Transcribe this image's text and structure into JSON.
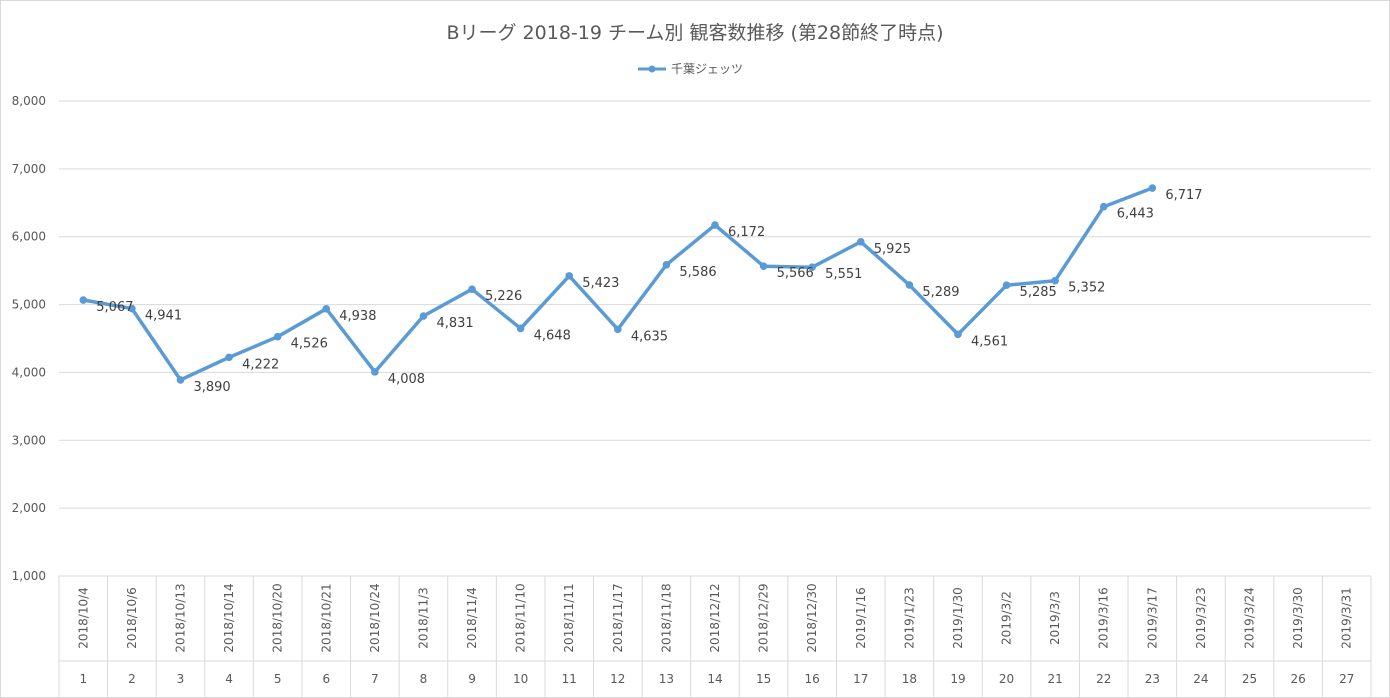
{
  "chart_data": {
    "type": "line",
    "title": "Bリーグ 2018-19 チーム別 観客数推移 (第28節終了時点)",
    "series": [
      {
        "name": "千葉ジェッツ",
        "color": "#5b9bd5",
        "values": [
          5067,
          4941,
          3890,
          4222,
          4526,
          4938,
          4008,
          4831,
          5226,
          4648,
          5423,
          4635,
          5586,
          6172,
          5566,
          5551,
          5925,
          5289,
          4561,
          5285,
          5352,
          6443,
          6717,
          null,
          null,
          null,
          null
        ]
      }
    ],
    "dates": [
      "2018/10/4",
      "2018/10/6",
      "2018/10/13",
      "2018/10/14",
      "2018/10/20",
      "2018/10/21",
      "2018/10/24",
      "2018/11/3",
      "2018/11/4",
      "2018/11/10",
      "2018/11/11",
      "2018/11/17",
      "2018/11/18",
      "2018/12/12",
      "2018/12/29",
      "2018/12/30",
      "2019/1/16",
      "2019/1/23",
      "2019/1/30",
      "2019/3/2",
      "2019/3/3",
      "2019/3/16",
      "2019/3/17",
      "2019/3/23",
      "2019/3/24",
      "2019/3/30",
      "2019/3/31"
    ],
    "game_numbers": [
      "1",
      "2",
      "3",
      "4",
      "5",
      "6",
      "7",
      "8",
      "9",
      "10",
      "11",
      "12",
      "13",
      "14",
      "15",
      "16",
      "17",
      "18",
      "19",
      "20",
      "21",
      "22",
      "23",
      "24",
      "25",
      "26",
      "27"
    ],
    "data_labels": [
      "5,067",
      "4,941",
      "3,890",
      "4,222",
      "4,526",
      "4,938",
      "4,008",
      "4,831",
      "5,226",
      "4,648",
      "5,423",
      "4,635",
      "5,586",
      "6,172",
      "5,566",
      "5,551",
      "5,925",
      "5,289",
      "4,561",
      "5,285",
      "5,352",
      "6,443",
      "6,717"
    ],
    "y_ticks": [
      "1,000",
      "2,000",
      "3,000",
      "4,000",
      "5,000",
      "6,000",
      "7,000",
      "8,000"
    ],
    "ylim": [
      1000,
      8000
    ],
    "grid": true,
    "legend_position": "top-center"
  }
}
